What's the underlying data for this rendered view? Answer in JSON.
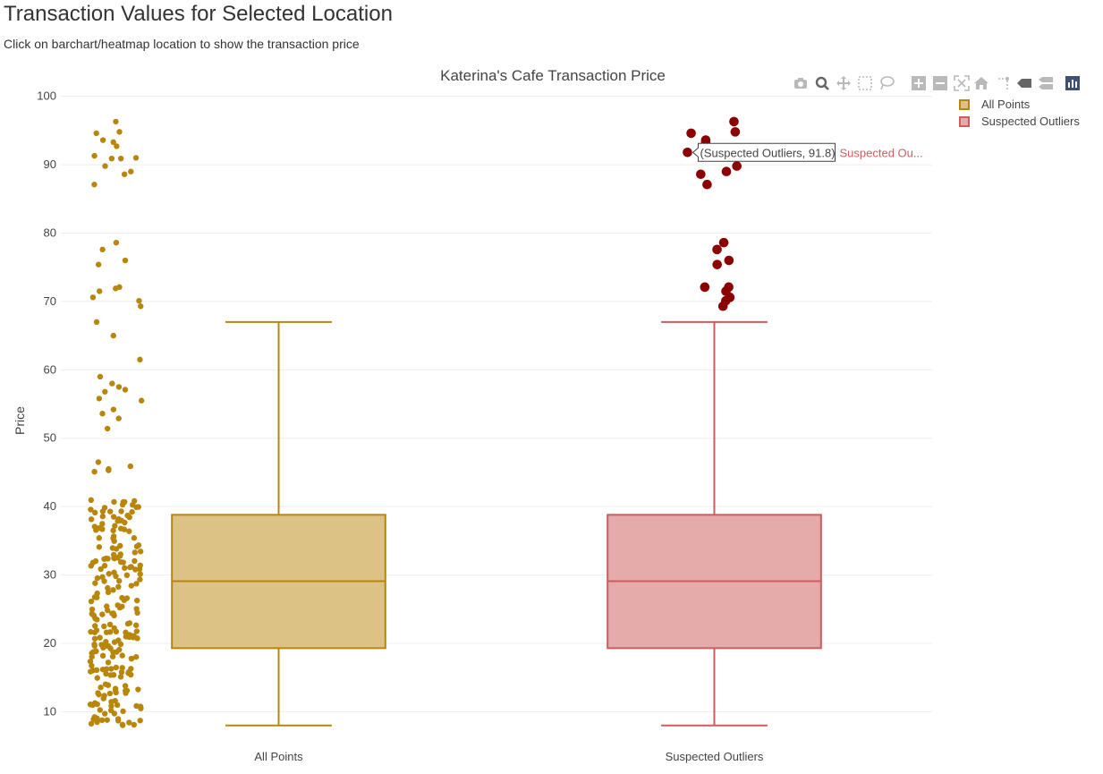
{
  "page": {
    "title": "Transaction Values for Selected Location",
    "subtitle": "Click on barchart/heatmap location to show the transaction price"
  },
  "toolbar": {
    "buttons": [
      {
        "name": "camera-icon",
        "label": "Download plot as a png"
      },
      {
        "name": "zoom-icon",
        "label": "Zoom"
      },
      {
        "name": "pan-icon",
        "label": "Pan"
      },
      {
        "name": "box-select-icon",
        "label": "Box Select"
      },
      {
        "name": "lasso-select-icon",
        "label": "Lasso Select"
      },
      {
        "name": "zoom-in-icon",
        "label": "Zoom in"
      },
      {
        "name": "zoom-out-icon",
        "label": "Zoom out"
      },
      {
        "name": "autoscale-icon",
        "label": "Autoscale"
      },
      {
        "name": "reset-axes-icon",
        "label": "Reset axes"
      },
      {
        "name": "spike-lines-icon",
        "label": "Toggle Spike Lines"
      },
      {
        "name": "hover-closest-icon",
        "label": "Show closest data on hover"
      },
      {
        "name": "hover-compare-icon",
        "label": "Compare data on hover"
      },
      {
        "name": "plotly-logo-icon",
        "label": "Produced with Plotly"
      }
    ],
    "icon_color": "#b9b9b9",
    "active_color": "#666666",
    "logo_color": "#3f4f75"
  },
  "colors": {
    "all_points_line": "#b8860b",
    "all_points_fill": "#dcc285",
    "outliers_line": "#cd5c5c",
    "outliers_fill": "#e5abab",
    "outlier_marker": "#8b0000",
    "grid": "#eeeeee"
  },
  "chart_data": {
    "type": "box",
    "title": "Katerina's Cafe Transaction Price",
    "ylabel": "Price",
    "xlabel": "",
    "ylim": [
      6,
      101
    ],
    "yticks": [
      10,
      20,
      30,
      40,
      50,
      60,
      70,
      80,
      90,
      100
    ],
    "categories": [
      "All Points",
      "Suspected Outliers"
    ],
    "grid": true,
    "legend_position": "top-right",
    "series": [
      {
        "name": "All Points",
        "boxpoints": "all",
        "box": {
          "min": 8,
          "q1": 19.3,
          "median": 29.1,
          "q3": 38.8,
          "max": 67
        },
        "points": [
          96.3,
          94.8,
          94.6,
          93.6,
          93.3,
          92.7,
          91.3,
          91.0,
          90.9,
          90.9,
          89.8,
          89.0,
          88.6,
          87.1,
          78.6,
          77.6,
          76.0,
          75.4,
          72.1,
          71.9,
          71.5,
          70.6,
          70.1,
          69.3,
          67.0,
          65.0,
          61.5,
          59.0,
          58.0,
          57.5,
          57.1,
          56.8,
          55.8,
          55.5,
          54.2,
          53.6,
          52.9,
          51.4,
          46.5,
          45.9,
          45.5,
          45.3,
          45.1
        ]
      },
      {
        "name": "Suspected Outliers",
        "boxpoints": "suspectedoutliers",
        "box": {
          "min": 8,
          "q1": 19.3,
          "median": 29.1,
          "q3": 38.8,
          "max": 67
        },
        "points": [
          96.3,
          94.8,
          94.6,
          93.6,
          93.3,
          91.8,
          89.8,
          89.0,
          88.6,
          87.1,
          78.6,
          77.6,
          76.0,
          75.4,
          72.1,
          72.1,
          71.5,
          70.6,
          70.1,
          69.3
        ]
      }
    ],
    "hover": {
      "series": "Suspected Outliers",
      "value": 91.8,
      "label": "(Suspected Outliers, 91.8)",
      "trace_label": "Suspected Ou..."
    }
  }
}
